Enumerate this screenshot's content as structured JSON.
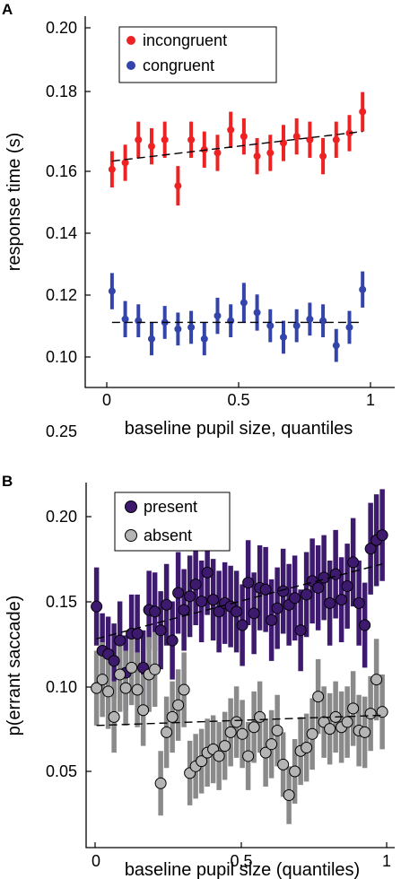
{
  "panels": [
    {
      "letter": "A",
      "xlabel": "baseline pupil size, quantiles",
      "ylabel": "response time (s)",
      "xticks": [
        "0",
        "0.5",
        "1"
      ],
      "yticks": [
        "0.10",
        "0.12",
        "0.14",
        "0.16",
        "0.18",
        "0.20"
      ],
      "legend": [
        "incongruent",
        "congruent"
      ]
    },
    {
      "letter": "B",
      "xlabel": "baseline pupil size (quantiles)",
      "ylabel": "p(errant saccade)",
      "xticks": [
        "0",
        "0.5",
        "1"
      ],
      "yticks": [
        "0.05",
        "0.10",
        "0.15",
        "0.20",
        "0.25"
      ],
      "legend": [
        "present",
        "absent"
      ]
    }
  ],
  "chart_data": [
    {
      "type": "scatter",
      "xlabel": "baseline pupil size, quantiles",
      "ylabel": "response time (s)",
      "xlim": [
        -0.08,
        1.08
      ],
      "ylim": [
        0.092,
        0.2
      ],
      "xticks": [
        0,
        0.5,
        1
      ],
      "yticks": [
        0.1,
        0.12,
        0.14,
        0.16,
        0.18,
        0.2
      ],
      "grid": false,
      "legend_position": "top-left",
      "series": [
        {
          "name": "incongruent",
          "color": "#ee2222",
          "marker": "dot",
          "x": [
            0.02,
            0.07,
            0.12,
            0.17,
            0.22,
            0.27,
            0.32,
            0.37,
            0.42,
            0.47,
            0.52,
            0.57,
            0.62,
            0.67,
            0.72,
            0.77,
            0.82,
            0.87,
            0.92,
            0.97
          ],
          "y": [
            0.157,
            0.159,
            0.166,
            0.164,
            0.166,
            0.152,
            0.166,
            0.163,
            0.162,
            0.169,
            0.167,
            0.161,
            0.162,
            0.165,
            0.167,
            0.166,
            0.161,
            0.166,
            0.168,
            0.1745
          ],
          "err": [
            0.0055,
            0.0055,
            0.0055,
            0.0055,
            0.0055,
            0.006,
            0.0055,
            0.0055,
            0.0055,
            0.0055,
            0.0055,
            0.0055,
            0.0055,
            0.0055,
            0.0055,
            0.0055,
            0.0055,
            0.0055,
            0.0055,
            0.006
          ],
          "trend": {
            "x": [
              0.02,
              0.97
            ],
            "y": [
              0.1595,
              0.1685
            ]
          }
        },
        {
          "name": "congruent",
          "color": "#3344aa",
          "marker": "dot",
          "x": [
            0.02,
            0.07,
            0.12,
            0.17,
            0.22,
            0.27,
            0.32,
            0.37,
            0.42,
            0.47,
            0.52,
            0.57,
            0.62,
            0.67,
            0.72,
            0.77,
            0.82,
            0.87,
            0.92,
            0.97
          ],
          "y": [
            0.12,
            0.1115,
            0.111,
            0.1055,
            0.1105,
            0.1085,
            0.109,
            0.1055,
            0.1125,
            0.111,
            0.1165,
            0.1135,
            0.1095,
            0.106,
            0.1095,
            0.1115,
            0.111,
            0.1035,
            0.109,
            0.1205
          ],
          "err": [
            0.0055,
            0.0055,
            0.005,
            0.005,
            0.005,
            0.005,
            0.005,
            0.005,
            0.0055,
            0.005,
            0.006,
            0.0055,
            0.005,
            0.005,
            0.005,
            0.005,
            0.005,
            0.005,
            0.005,
            0.0055
          ],
          "trend": {
            "x": [
              0.02,
              0.97
            ],
            "y": [
              0.1105,
              0.1105
            ]
          }
        }
      ]
    },
    {
      "type": "scatter",
      "xlabel": "baseline pupil size (quantiles)",
      "ylabel": "p(errant saccade)",
      "xlim": [
        -0.03,
        1.03
      ],
      "ylim": [
        0.02,
        0.27
      ],
      "xticks": [
        0,
        0.5,
        1
      ],
      "yticks": [
        0.05,
        0.1,
        0.15,
        0.2,
        0.25
      ],
      "grid": false,
      "legend_position": "top-left",
      "series": [
        {
          "name": "present",
          "color": "#3d1a6e",
          "errcolor": "#3d1a6e",
          "marker": "circle",
          "x": [
            0.005,
            0.025,
            0.045,
            0.065,
            0.085,
            0.105,
            0.125,
            0.145,
            0.165,
            0.185,
            0.205,
            0.225,
            0.245,
            0.265,
            0.285,
            0.305,
            0.325,
            0.345,
            0.365,
            0.385,
            0.405,
            0.425,
            0.445,
            0.465,
            0.485,
            0.505,
            0.525,
            0.545,
            0.565,
            0.585,
            0.605,
            0.625,
            0.645,
            0.665,
            0.685,
            0.705,
            0.725,
            0.745,
            0.765,
            0.785,
            0.805,
            0.825,
            0.845,
            0.865,
            0.885,
            0.905,
            0.925,
            0.945,
            0.965,
            0.985
          ],
          "y": [
            0.147,
            0.121,
            0.119,
            0.115,
            0.127,
            0.108,
            0.131,
            0.131,
            0.111,
            0.145,
            0.144,
            0.133,
            0.148,
            0.127,
            0.155,
            0.145,
            0.153,
            0.16,
            0.15,
            0.167,
            0.151,
            0.144,
            0.149,
            0.147,
            0.144,
            0.136,
            0.161,
            0.143,
            0.158,
            0.157,
            0.139,
            0.146,
            0.156,
            0.148,
            0.152,
            0.133,
            0.154,
            0.162,
            0.158,
            0.164,
            0.149,
            0.166,
            0.151,
            0.159,
            0.173,
            0.149,
            0.136,
            0.181,
            0.186,
            0.189
          ],
          "err": [
            0.023,
            0.022,
            0.022,
            0.022,
            0.023,
            0.022,
            0.023,
            0.023,
            0.022,
            0.023,
            0.023,
            0.023,
            0.024,
            0.023,
            0.024,
            0.024,
            0.024,
            0.024,
            0.024,
            0.025,
            0.024,
            0.024,
            0.024,
            0.024,
            0.024,
            0.024,
            0.025,
            0.024,
            0.025,
            0.025,
            0.024,
            0.024,
            0.025,
            0.024,
            0.025,
            0.024,
            0.025,
            0.025,
            0.025,
            0.025,
            0.025,
            0.026,
            0.025,
            0.025,
            0.026,
            0.025,
            0.025,
            0.027,
            0.027,
            0.027
          ],
          "trend": {
            "x": [
              0.005,
              0.985
            ],
            "y": [
              0.128,
              0.172
            ]
          }
        },
        {
          "name": "absent",
          "color": "#b4b4b4",
          "errcolor": "#8a8a8a",
          "marker": "circle",
          "x": [
            0.005,
            0.025,
            0.045,
            0.065,
            0.085,
            0.105,
            0.125,
            0.145,
            0.165,
            0.185,
            0.205,
            0.225,
            0.245,
            0.265,
            0.285,
            0.305,
            0.325,
            0.345,
            0.365,
            0.385,
            0.405,
            0.425,
            0.445,
            0.465,
            0.485,
            0.505,
            0.525,
            0.545,
            0.565,
            0.585,
            0.605,
            0.625,
            0.645,
            0.665,
            0.685,
            0.705,
            0.725,
            0.745,
            0.765,
            0.785,
            0.805,
            0.825,
            0.845,
            0.865,
            0.885,
            0.905,
            0.925,
            0.945,
            0.965,
            0.985
          ],
          "y": [
            0.099,
            0.104,
            0.097,
            0.082,
            0.107,
            0.099,
            0.111,
            0.098,
            0.086,
            0.107,
            0.11,
            0.043,
            0.073,
            0.082,
            0.089,
            0.098,
            0.049,
            0.053,
            0.056,
            0.061,
            0.063,
            0.059,
            0.065,
            0.073,
            0.079,
            0.072,
            0.059,
            0.076,
            0.082,
            0.061,
            0.066,
            0.074,
            0.054,
            0.036,
            0.05,
            0.062,
            0.064,
            0.072,
            0.094,
            0.079,
            0.075,
            0.082,
            0.076,
            0.079,
            0.087,
            0.074,
            0.073,
            0.084,
            0.104,
            0.085
          ],
          "err": [
            0.022,
            0.022,
            0.022,
            0.021,
            0.022,
            0.022,
            0.022,
            0.022,
            0.021,
            0.022,
            0.022,
            0.019,
            0.021,
            0.021,
            0.021,
            0.022,
            0.019,
            0.019,
            0.019,
            0.02,
            0.02,
            0.02,
            0.02,
            0.02,
            0.021,
            0.02,
            0.02,
            0.021,
            0.021,
            0.02,
            0.02,
            0.021,
            0.019,
            0.017,
            0.019,
            0.02,
            0.02,
            0.021,
            0.022,
            0.021,
            0.021,
            0.021,
            0.021,
            0.021,
            0.022,
            0.021,
            0.021,
            0.022,
            0.024,
            0.022
          ],
          "trend": {
            "x": [
              0.005,
              0.985
            ],
            "y": [
              0.077,
              0.083
            ]
          }
        }
      ]
    }
  ]
}
